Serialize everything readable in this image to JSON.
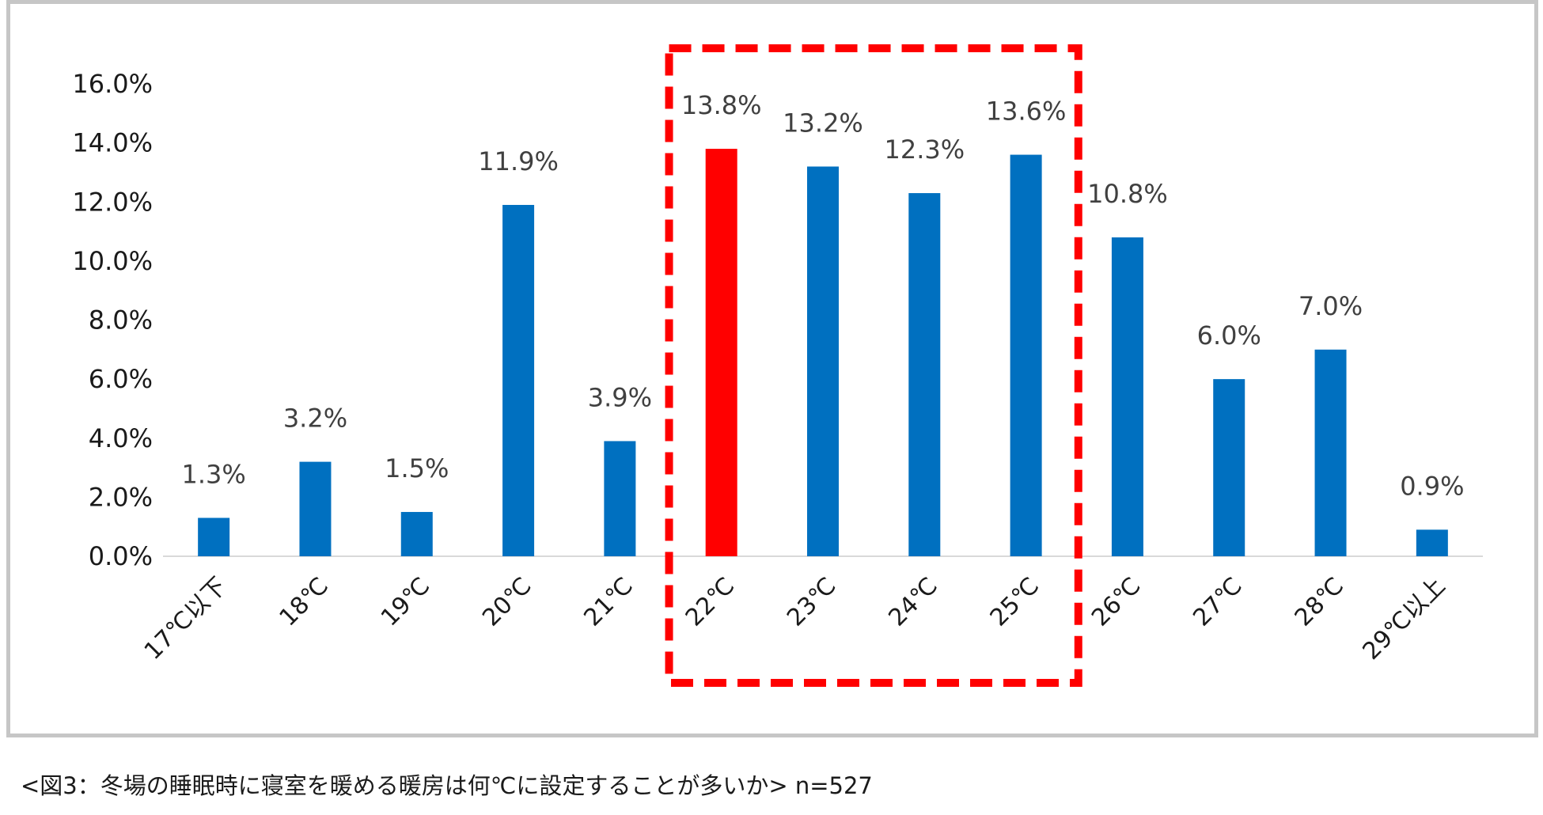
{
  "chart_data": {
    "type": "bar",
    "title": "",
    "xlabel": "",
    "ylabel": "",
    "categories": [
      "17℃以下",
      "18℃",
      "19℃",
      "20℃",
      "21℃",
      "22℃",
      "23℃",
      "24℃",
      "25℃",
      "26℃",
      "27℃",
      "28℃",
      "29℃以上"
    ],
    "values": [
      1.3,
      3.2,
      1.5,
      11.9,
      3.9,
      13.8,
      13.2,
      12.3,
      13.6,
      10.8,
      6.0,
      7.0,
      0.9
    ],
    "data_labels": [
      "1.3%",
      "3.2%",
      "1.5%",
      "11.9%",
      "3.9%",
      "13.8%",
      "13.2%",
      "12.3%",
      "13.6%",
      "10.8%",
      "6.0%",
      "7.0%",
      "0.9%"
    ],
    "ylim": [
      0,
      16
    ],
    "yticks": [
      0,
      2,
      4,
      6,
      8,
      10,
      12,
      14,
      16
    ],
    "ytick_labels": [
      "0.0%",
      "2.0%",
      "4.0%",
      "6.0%",
      "8.0%",
      "10.0%",
      "12.0%",
      "14.0%",
      "16.0%"
    ],
    "highlighted_category": "22℃",
    "highlight_box_categories": [
      "22℃",
      "23℃",
      "24℃",
      "25℃"
    ],
    "grid": false,
    "legend": "none"
  },
  "colors": {
    "bar": "#0070c0",
    "highlight_bar": "#ff0000",
    "highlight_box": "#ff0000",
    "axis": "#d9d9d9",
    "frame": "#c6c6c6"
  },
  "caption": "<図3：冬場の睡眠時に寝室を暖める暖房は何℃に設定することが多いか>  n=527"
}
